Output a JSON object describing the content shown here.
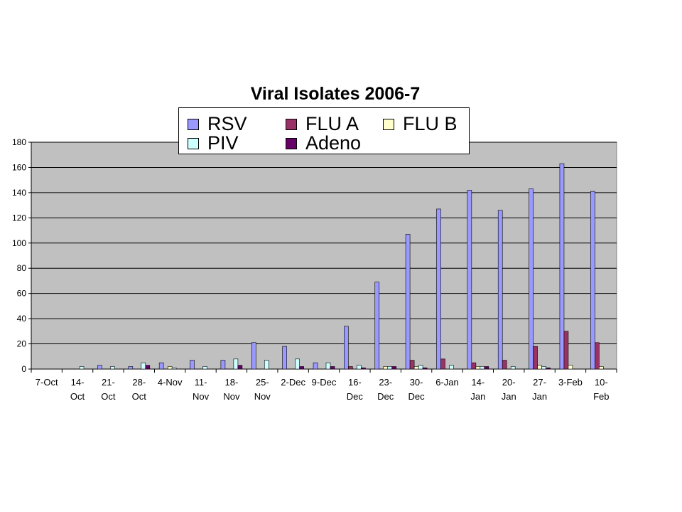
{
  "chart_data": {
    "type": "bar",
    "title": "Viral Isolates 2006-7",
    "xlabel": "",
    "ylabel": "",
    "ylim": [
      0,
      180
    ],
    "yticks": [
      0,
      20,
      40,
      60,
      80,
      100,
      120,
      140,
      160,
      180
    ],
    "grid": true,
    "legend_position": "top",
    "categories": [
      "7-Oct",
      "14-Oct",
      "21-Oct",
      "28-Oct",
      "4-Nov",
      "11-Nov",
      "18-Nov",
      "25-Nov",
      "2-Dec",
      "9-Dec",
      "16-Dec",
      "23-Dec",
      "30-Dec",
      "6-Jan",
      "14-Jan",
      "20-Jan",
      "27-Jan",
      "3-Feb",
      "10-Feb"
    ],
    "category_labels": [
      [
        "7-Oct"
      ],
      [
        "14-",
        "Oct"
      ],
      [
        "21-",
        "Oct"
      ],
      [
        "28-",
        "Oct"
      ],
      [
        "4-Nov"
      ],
      [
        "11-",
        "Nov"
      ],
      [
        "18-",
        "Nov"
      ],
      [
        "25-",
        "Nov"
      ],
      [
        "2-Dec"
      ],
      [
        "9-Dec"
      ],
      [
        "16-",
        "Dec"
      ],
      [
        "23-",
        "Dec"
      ],
      [
        "30-",
        "Dec"
      ],
      [
        "6-Jan"
      ],
      [
        "14-",
        "Jan"
      ],
      [
        "20-",
        "Jan"
      ],
      [
        "27-",
        "Jan"
      ],
      [
        "3-Feb"
      ],
      [
        "10-",
        "Feb"
      ]
    ],
    "series": [
      {
        "name": "RSV",
        "color": "#9999ff",
        "values": [
          0,
          0,
          3,
          2,
          5,
          7,
          7,
          21,
          18,
          5,
          34,
          69,
          107,
          127,
          142,
          126,
          143,
          163,
          141
        ]
      },
      {
        "name": "FLU A",
        "color": "#993366",
        "values": [
          0,
          0,
          0,
          0,
          0,
          0,
          0,
          0,
          0,
          0,
          2,
          0,
          7,
          8,
          5,
          7,
          18,
          30,
          21
        ]
      },
      {
        "name": "FLU B",
        "color": "#ffffcc",
        "values": [
          0,
          0,
          0,
          0,
          2,
          0,
          0,
          0,
          0,
          0,
          0,
          2,
          2,
          0,
          2,
          0,
          3,
          3,
          2
        ]
      },
      {
        "name": "PIV",
        "color": "#ccffff",
        "values": [
          0,
          2,
          2,
          5,
          1,
          2,
          8,
          7,
          8,
          5,
          3,
          2,
          3,
          3,
          2,
          2,
          2,
          0,
          0
        ]
      },
      {
        "name": "Adeno",
        "color": "#660066",
        "values": [
          0,
          0,
          0,
          3,
          0,
          0,
          3,
          0,
          2,
          2,
          1,
          2,
          1,
          0,
          2,
          0,
          1,
          0,
          0
        ]
      }
    ]
  }
}
